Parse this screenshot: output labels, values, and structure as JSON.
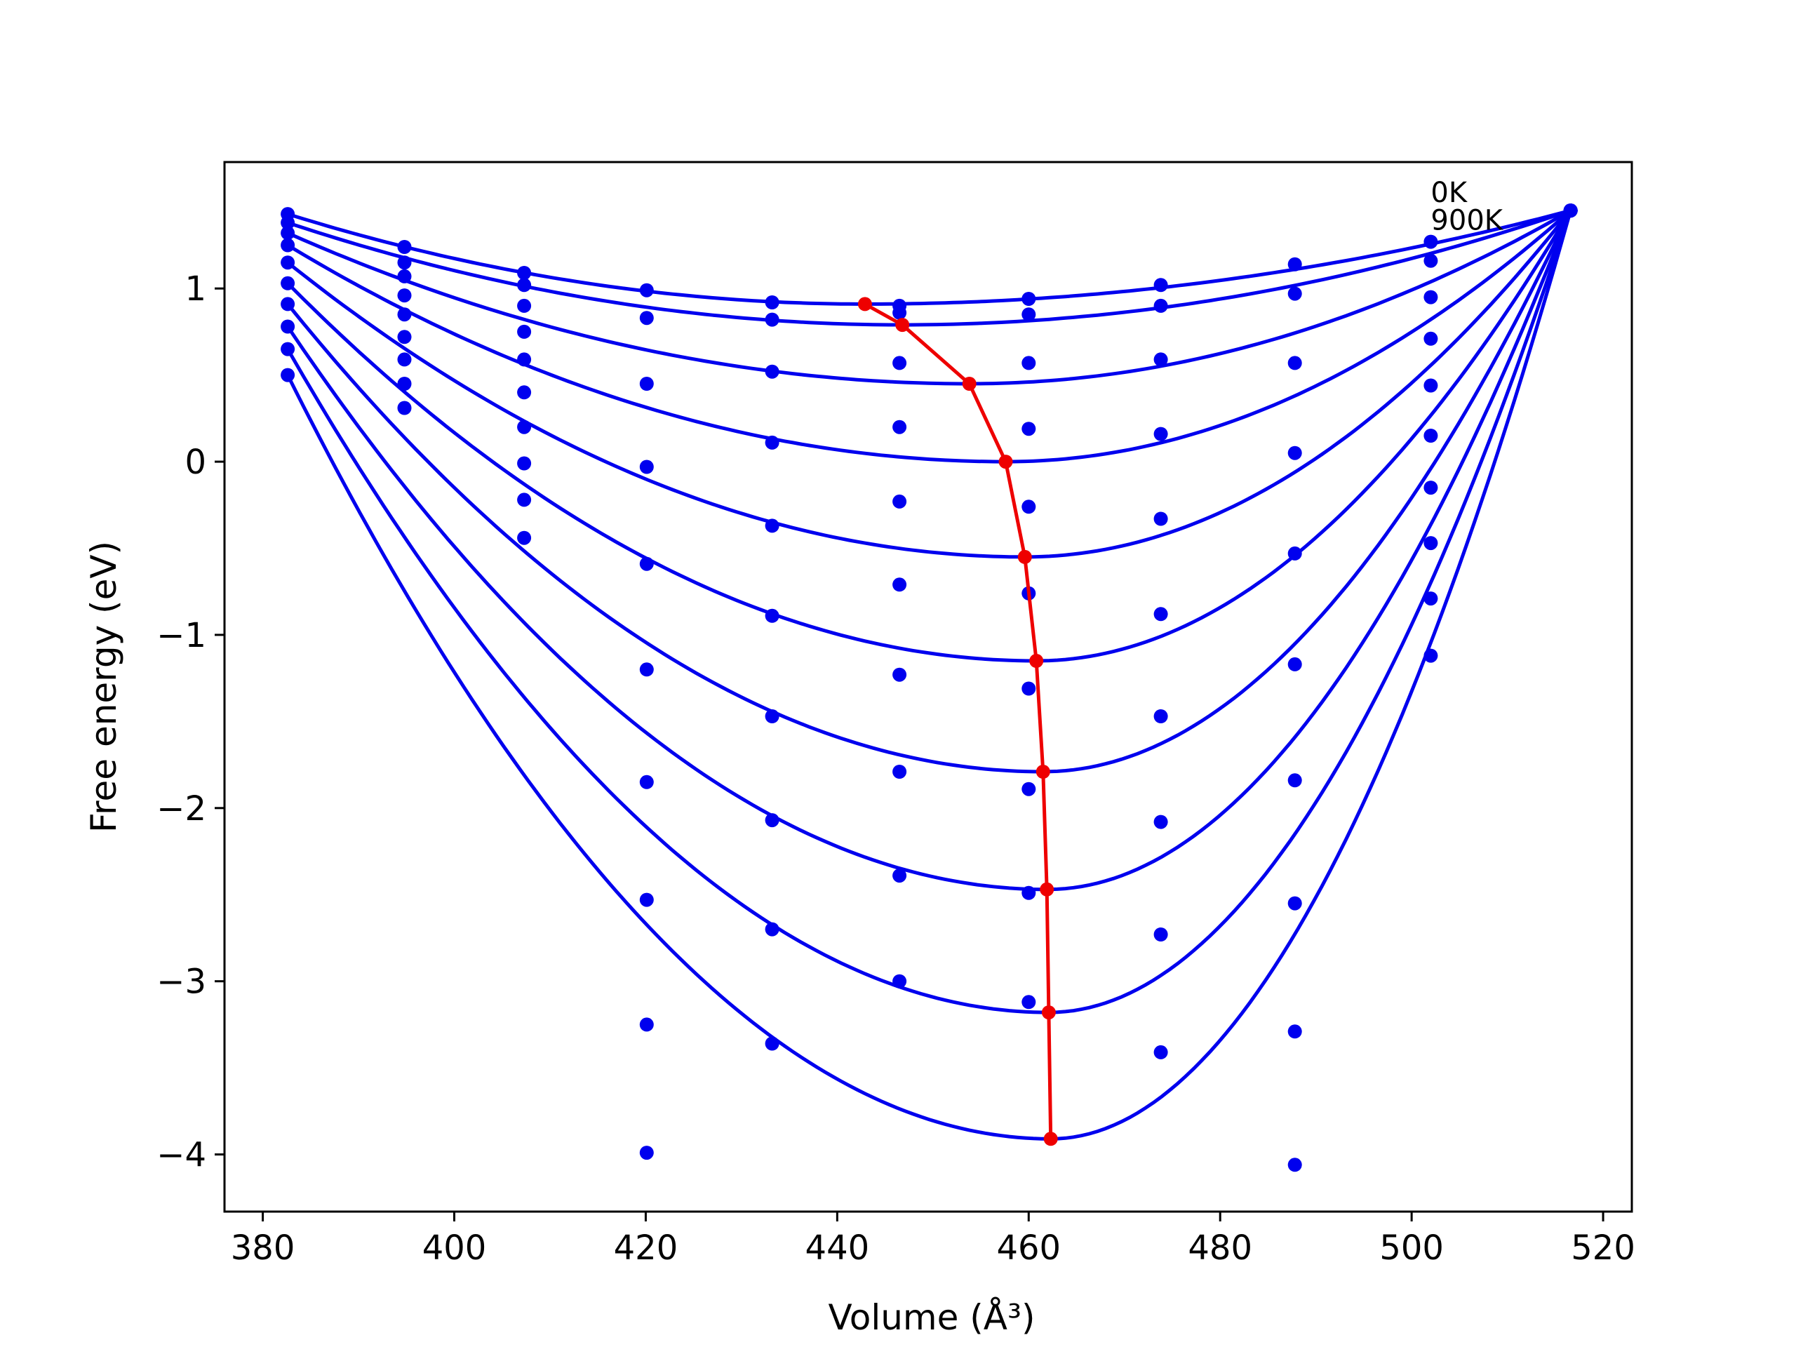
{
  "chart_data": {
    "type": "scatter",
    "title": "",
    "xlabel": "Volume (Å³)",
    "ylabel": "Free energy (eV)",
    "xlim": [
      376,
      523
    ],
    "ylim": [
      -4.33,
      1.73
    ],
    "grid": false,
    "x_ticks": [
      380,
      400,
      420,
      440,
      460,
      480,
      500,
      520
    ],
    "y_ticks": [
      -4,
      -3,
      -2,
      -1,
      0,
      1
    ],
    "colors": {
      "fit_curves": "#0000ee",
      "points": "#0000ee",
      "minima": "#ee0000"
    },
    "annotations": [
      {
        "text": "0K",
        "x": 502,
        "y": 1.5
      },
      {
        "text": "900K",
        "x": 502,
        "y": 1.34
      }
    ],
    "volumes": [
      382.6,
      394.8,
      407.3,
      420.1,
      433.2,
      446.5,
      460.0,
      473.8,
      487.8,
      502.0,
      516.6
    ],
    "series": [
      {
        "minimum": [
          442.9,
          0.91
        ],
        "energies": [
          1.43,
          1.24,
          1.09,
          0.99,
          0.92,
          0.9,
          0.94,
          1.02,
          1.14,
          1.27,
          1.45
        ]
      },
      {
        "minimum": [
          446.8,
          0.79
        ],
        "energies": [
          1.38,
          1.15,
          1.02,
          0.83,
          0.82,
          0.86,
          0.85,
          0.9,
          0.97,
          1.16,
          1.45
        ]
      },
      {
        "minimum": [
          453.8,
          0.45
        ],
        "energies": [
          1.32,
          1.07,
          0.9,
          0.45,
          0.52,
          0.57,
          0.57,
          0.59,
          0.57,
          0.95,
          1.45
        ]
      },
      {
        "minimum": [
          457.6,
          0.0
        ],
        "energies": [
          1.25,
          0.96,
          0.75,
          -0.03,
          0.11,
          0.2,
          0.19,
          0.16,
          0.05,
          0.71,
          1.45
        ]
      },
      {
        "minimum": [
          459.6,
          -0.55
        ],
        "energies": [
          1.15,
          0.85,
          0.59,
          -0.59,
          -0.37,
          -0.23,
          -0.26,
          -0.33,
          -0.53,
          0.44,
          1.45
        ]
      },
      {
        "minimum": [
          460.8,
          -1.15
        ],
        "energies": [
          1.03,
          0.72,
          0.4,
          -1.2,
          -0.89,
          -0.71,
          -0.76,
          -0.88,
          -1.17,
          0.15,
          1.45
        ]
      },
      {
        "minimum": [
          461.5,
          -1.79
        ],
        "energies": [
          0.91,
          0.59,
          0.2,
          -1.85,
          -1.47,
          -1.23,
          -1.31,
          -1.47,
          -1.84,
          -0.15,
          1.45
        ]
      },
      {
        "minimum": [
          461.9,
          -2.47
        ],
        "energies": [
          0.78,
          0.45,
          -0.01,
          -2.53,
          -2.07,
          -1.79,
          -1.89,
          -2.08,
          -2.55,
          -0.47,
          1.45
        ]
      },
      {
        "minimum": [
          462.1,
          -3.18
        ],
        "energies": [
          0.65,
          0.31,
          -0.22,
          -3.25,
          -2.7,
          -2.39,
          -2.49,
          -2.73,
          -3.29,
          -0.79,
          1.45
        ]
      },
      {
        "minimum": [
          462.3,
          -3.91
        ],
        "energies": [
          0.5,
          null,
          -0.44,
          -3.99,
          -3.36,
          -3.0,
          -3.12,
          -3.41,
          -4.06,
          -1.12,
          1.45
        ]
      }
    ]
  }
}
